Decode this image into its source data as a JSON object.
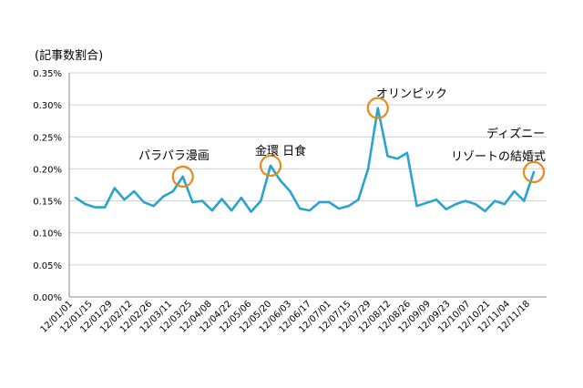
{
  "chart_data": {
    "type": "line",
    "ylabel": "(記事数割合)",
    "y_ticks": [
      "0.00%",
      "0.05%",
      "0.10%",
      "0.15%",
      "0.20%",
      "0.25%",
      "0.30%",
      "0.35%"
    ],
    "y_tick_values": [
      0,
      0.05,
      0.1,
      0.15,
      0.2,
      0.25,
      0.3,
      0.35
    ],
    "ylim": [
      0,
      0.35
    ],
    "x_tick_labels": [
      "12/01/01",
      "12/01/15",
      "12/01/29",
      "12/02/12",
      "12/02/26",
      "12/03/11",
      "12/03/25",
      "12/04/08",
      "12/04/22",
      "12/05/06",
      "12/05/20",
      "12/06/03",
      "12/06/17",
      "12/07/01",
      "12/07/15",
      "12/07/29",
      "12/08/12",
      "12/08/26",
      "12/09/09",
      "12/09/23",
      "12/10/07",
      "12/10/21",
      "12/11/04",
      "12/11/18"
    ],
    "series": [
      {
        "name": "記事数割合",
        "color": "#2aa3cf",
        "values": [
          0.155,
          0.145,
          0.14,
          0.14,
          0.17,
          0.152,
          0.165,
          0.148,
          0.142,
          0.157,
          0.165,
          0.188,
          0.148,
          0.15,
          0.135,
          0.153,
          0.135,
          0.155,
          0.133,
          0.15,
          0.205,
          0.182,
          0.165,
          0.138,
          0.135,
          0.148,
          0.148,
          0.138,
          0.142,
          0.152,
          0.2,
          0.295,
          0.22,
          0.216,
          0.225,
          0.142,
          0.147,
          0.152,
          0.137,
          0.145,
          0.15,
          0.145,
          0.134,
          0.15,
          0.145,
          0.165,
          0.15,
          0.195
        ]
      }
    ],
    "annotations": [
      {
        "text": "パラパラ漫画",
        "index": 11
      },
      {
        "text": "金環 日食",
        "index": 20
      },
      {
        "text": "オリンピック",
        "index": 31
      },
      {
        "text": "ディズニー",
        "index": 47
      },
      {
        "text": "リゾートの結婚式",
        "index": 47
      }
    ],
    "highlight_color": "#e8891c"
  }
}
